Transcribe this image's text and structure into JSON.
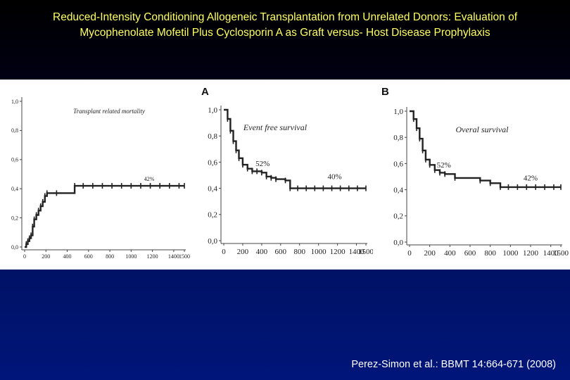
{
  "slide": {
    "title_line1": "Reduced-Intensity Conditioning Allogeneic Transplantation from Unrelated Donors: Evaluation of",
    "title_line2": "Mycophenolate Mofetil Plus Cyclosporin A as Graft versus- Host Disease Prophylaxis",
    "citation": "Perez-Simon et al.:  BBMT 14:664-671 (2008)",
    "colors": {
      "title": "#ffff66",
      "citation": "#ffffff",
      "curve": "#222222"
    }
  },
  "chart_data": [
    {
      "type": "line",
      "panel_label": "",
      "title": "Transplant related mortality",
      "annotations": [
        "42%"
      ],
      "xlim": [
        0,
        1500
      ],
      "ylim": [
        0,
        1
      ],
      "x_ticks": [
        "0",
        "200",
        "400",
        "600",
        "800",
        "1000",
        "1200",
        "1400",
        "1500"
      ],
      "y_ticks": [
        "0,0",
        "0,2",
        "0,4",
        "0,6",
        "0,8",
        "1,0"
      ],
      "series": [
        {
          "name": "Transplant related mortality",
          "x": [
            0,
            15,
            30,
            45,
            60,
            75,
            90,
            110,
            130,
            150,
            170,
            190,
            210,
            300,
            470,
            1500
          ],
          "y": [
            0.0,
            0.02,
            0.04,
            0.06,
            0.08,
            0.14,
            0.19,
            0.22,
            0.25,
            0.28,
            0.31,
            0.35,
            0.37,
            0.37,
            0.42,
            0.42
          ]
        }
      ]
    },
    {
      "type": "line",
      "panel_label": "A",
      "title": "Event free survival",
      "annotations": [
        "52%",
        "40%"
      ],
      "xlim": [
        0,
        1500
      ],
      "ylim": [
        0,
        1
      ],
      "x_ticks": [
        "0",
        "200",
        "400",
        "600",
        "800",
        "1000",
        "1200",
        "1400",
        "1500"
      ],
      "y_ticks": [
        "0,0",
        "0,2",
        "0,4",
        "0,6",
        "0,8",
        "1,0"
      ],
      "series": [
        {
          "name": "Event free survival",
          "x": [
            0,
            40,
            70,
            100,
            130,
            160,
            200,
            250,
            300,
            350,
            400,
            450,
            500,
            550,
            650,
            700,
            1500
          ],
          "y": [
            1.0,
            0.93,
            0.84,
            0.76,
            0.69,
            0.63,
            0.58,
            0.55,
            0.53,
            0.53,
            0.52,
            0.49,
            0.48,
            0.47,
            0.46,
            0.4,
            0.4
          ]
        }
      ]
    },
    {
      "type": "line",
      "panel_label": "B",
      "title": "Overal survival",
      "annotations": [
        "52%",
        "42%"
      ],
      "xlim": [
        0,
        1500
      ],
      "ylim": [
        0,
        1
      ],
      "x_ticks": [
        "0",
        "200",
        "400",
        "600",
        "800",
        "1000",
        "1200",
        "1400",
        "1500"
      ],
      "y_ticks": [
        "0,0",
        "0,2",
        "0,4",
        "0,6",
        "0,8",
        "1,0"
      ],
      "series": [
        {
          "name": "Overal survival",
          "x": [
            0,
            40,
            70,
            100,
            130,
            160,
            200,
            250,
            300,
            350,
            450,
            700,
            800,
            900,
            1500
          ],
          "y": [
            1.0,
            0.94,
            0.87,
            0.79,
            0.7,
            0.63,
            0.59,
            0.55,
            0.53,
            0.52,
            0.49,
            0.47,
            0.45,
            0.42,
            0.42
          ]
        }
      ]
    }
  ]
}
